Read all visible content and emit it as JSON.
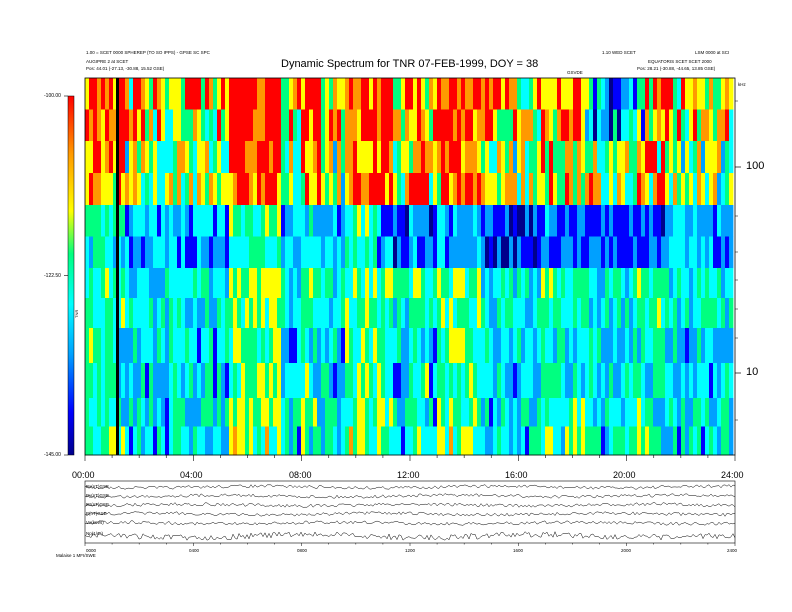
{
  "header": {
    "top_left_line1": "1.00 = SCET 0000 SPHEREP (TO SO IPPS) - GPSE SC SPC",
    "top_left_line2": "AUGIPRE 2 at SCET",
    "top_left_line3": "Pos:     44.01 (-27.13, -30.88, 15.52 GSE)",
    "top_right_line1": "1.10 WED SCET",
    "top_right_line2": "LSM 0000 at SCI",
    "top_right_line3": "EQUATORIS SCET SCET 2000",
    "top_right_line4": "Pos:     28.21 (-30.88, -44.65, 13.85 GSE)",
    "mid_label": "GSVDE",
    "unit_label": "kHz"
  },
  "chart_data": [
    {
      "type": "heatmap",
      "title": "Dynamic Spectrum for TNR 07-FEB-1999, DOY = 38",
      "x_ticks": [
        "00:00",
        "04:00",
        "08:00",
        "12:00",
        "16:00",
        "20:00",
        "24:00"
      ],
      "y_ticks": [
        "100",
        "10"
      ],
      "colorbar": {
        "label": "TNR",
        "ticks": [
          "-100.00",
          "-122.50",
          "-145.00"
        ],
        "range": [
          -145.0,
          -100.0
        ],
        "colors": [
          "#00008b",
          "#0000ff",
          "#00a0ff",
          "#00ffff",
          "#00ff80",
          "#ffff00",
          "#ff9900",
          "#ff0000"
        ]
      }
    },
    {
      "type": "line",
      "panel_labels": [
        "Bx(nT)GSE",
        "By(nT)GSE",
        "Bz(nT)GSE",
        "B(nT)GSE",
        "Vx(km/s)",
        "Np(1/cc)"
      ],
      "x_ticks": [
        "0000",
        "0400",
        "0800",
        "1200",
        "1600",
        "2000",
        "2400"
      ],
      "footer_label": "Malaise 1 MFI/SWE"
    }
  ]
}
